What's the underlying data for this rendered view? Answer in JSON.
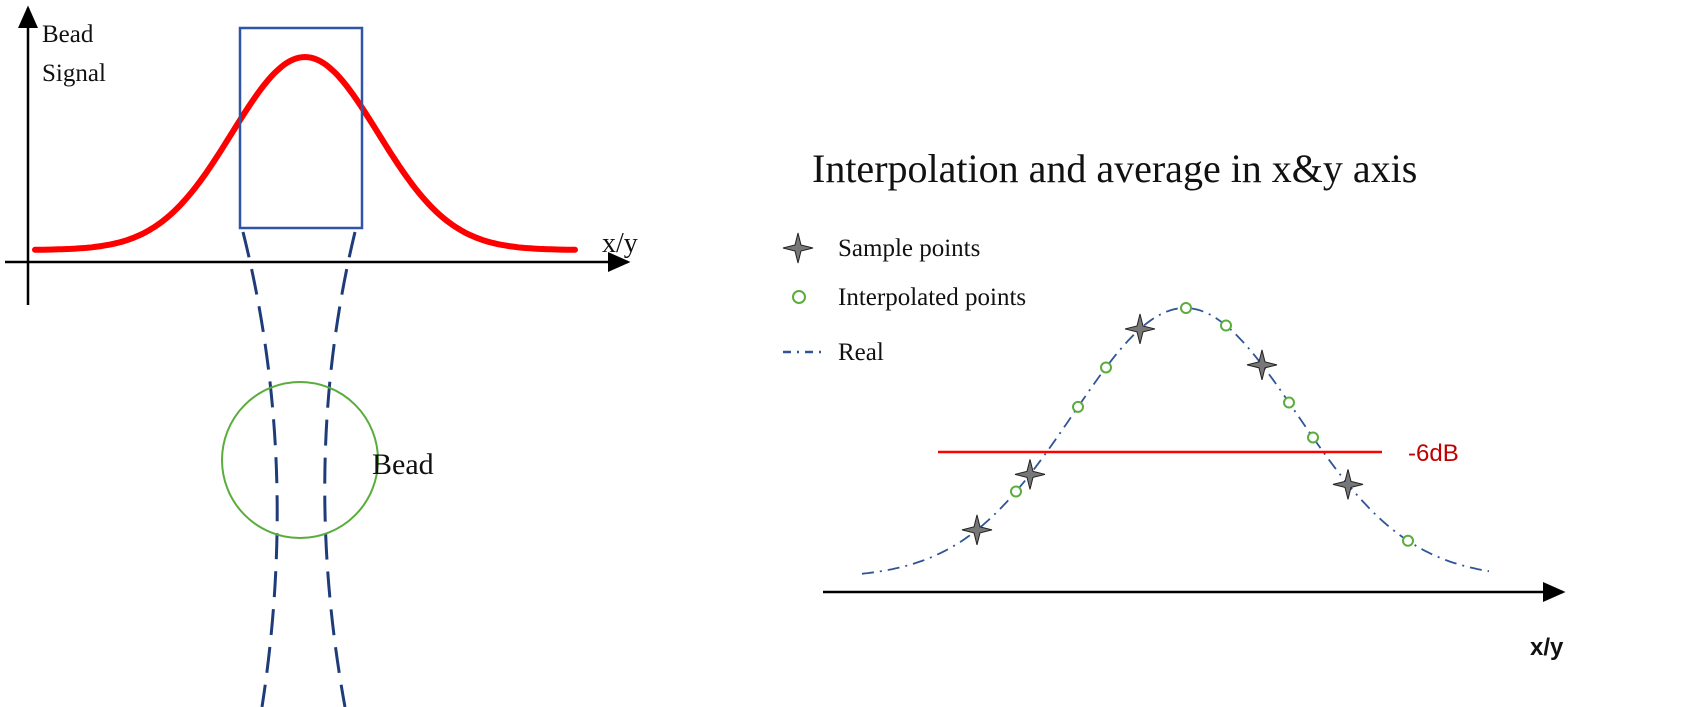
{
  "left_panel": {
    "y_axis_label_line1": "Bead",
    "y_axis_label_line2": "Signal",
    "x_axis_label": "x/y",
    "bead_label": "Bead"
  },
  "right_panel": {
    "title": "Interpolation and average in x&y axis",
    "legend": [
      {
        "icon": "four-point-star-icon",
        "label": "Sample points"
      },
      {
        "icon": "open-circle-icon",
        "label": "Interpolated points"
      },
      {
        "icon": "dash-dot-line-icon",
        "label": "Real"
      }
    ],
    "threshold_label": "-6dB",
    "x_axis_label": "x/y"
  },
  "colors": {
    "signal_curve": "#ff0000",
    "box": "#2f55a4",
    "beam": "#1f3c7a",
    "bead": "#5aad3c",
    "real_curve": "#2f5597",
    "interp_point": "#5aad3c",
    "sample_point": "#777777",
    "threshold": "#ff0000",
    "threshold_text": "#c00000"
  }
}
